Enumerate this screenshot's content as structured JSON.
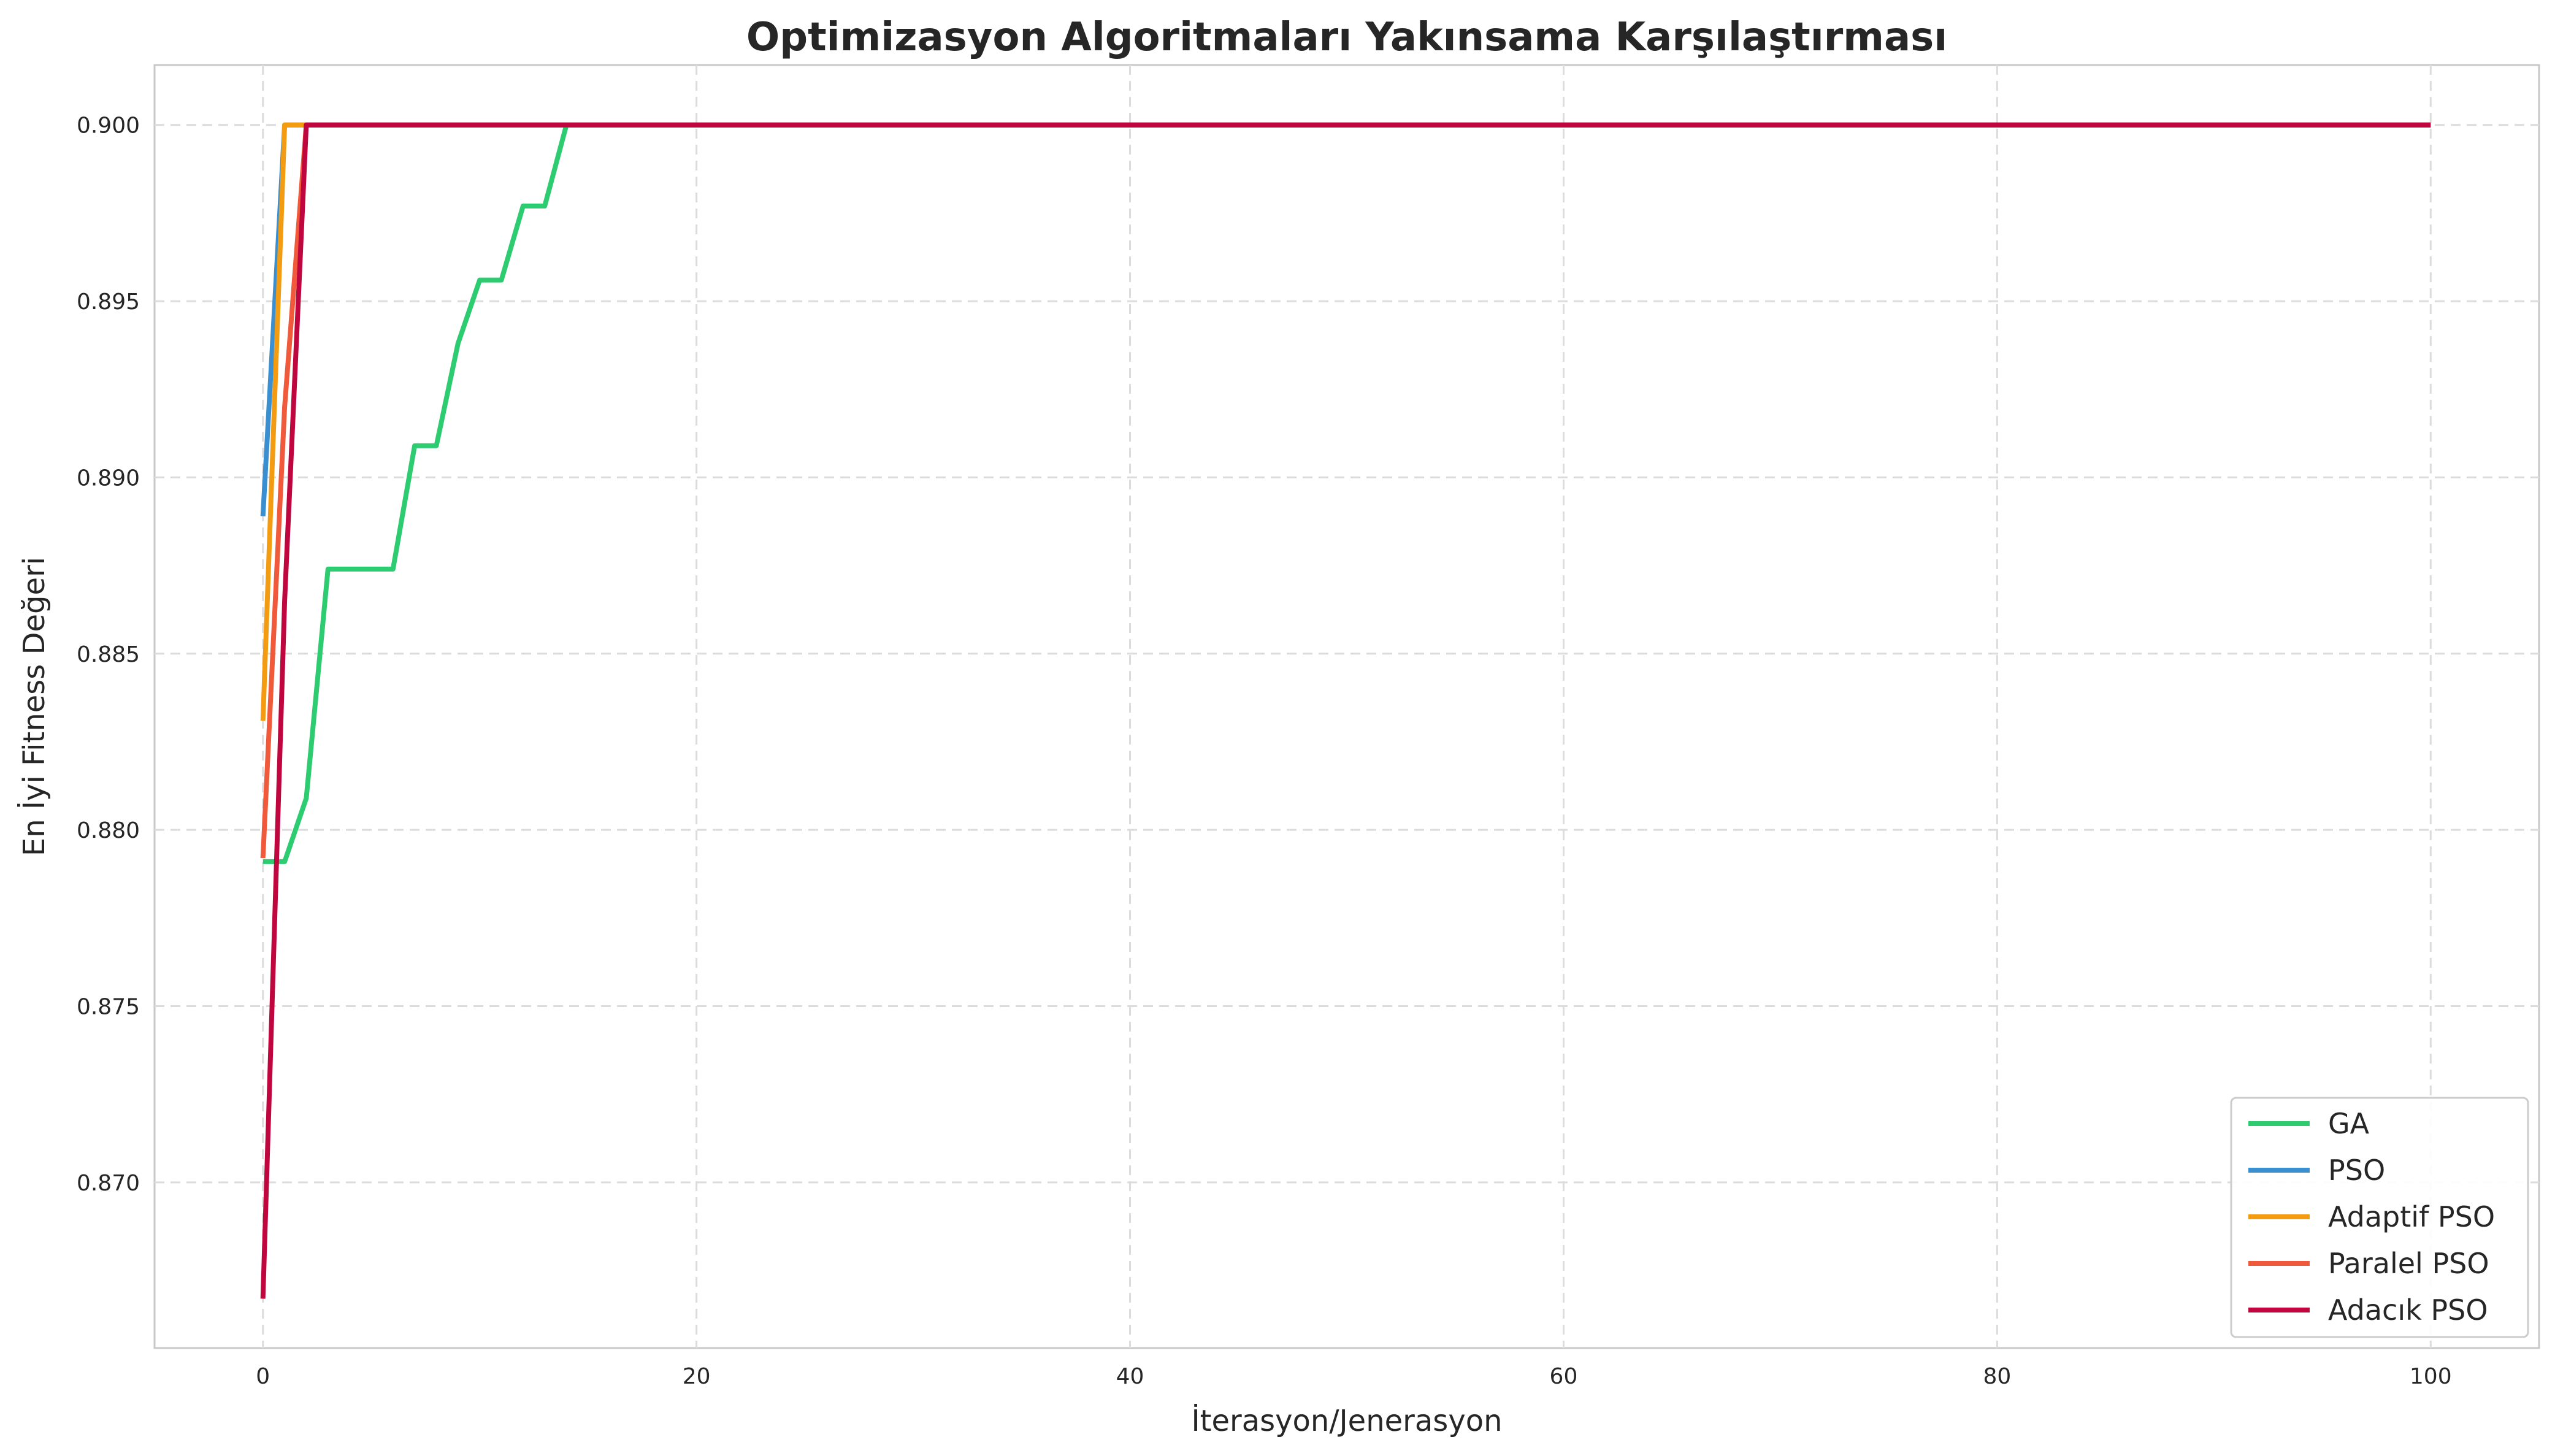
{
  "chart_data": {
    "type": "line",
    "title": "Optimizasyon Algoritmaları Yakınsama Karşılaştırması",
    "xlabel": "İterasyon/Jenerasyon",
    "ylabel": "En İyi Fitness Değeri",
    "xlim": [
      -5,
      105
    ],
    "ylim": [
      0.8653,
      0.9017
    ],
    "xticks": [
      0,
      20,
      40,
      60,
      80,
      100
    ],
    "xtick_labels": [
      "0",
      "20",
      "40",
      "60",
      "80",
      "100"
    ],
    "yticks": [
      0.87,
      0.875,
      0.88,
      0.885,
      0.89,
      0.895,
      0.9
    ],
    "ytick_labels": [
      "0.870",
      "0.875",
      "0.880",
      "0.885",
      "0.890",
      "0.895",
      "0.900"
    ],
    "grid": true,
    "legend_position": "lower-right",
    "series": [
      {
        "name": "GA",
        "color": "#2ecc71",
        "points": [
          [
            0,
            0.8791
          ],
          [
            1,
            0.8791
          ],
          [
            2,
            0.8809
          ],
          [
            3,
            0.8874
          ],
          [
            4,
            0.8874
          ],
          [
            5,
            0.8874
          ],
          [
            6,
            0.8874
          ],
          [
            7,
            0.8909
          ],
          [
            8,
            0.8909
          ],
          [
            9,
            0.8938
          ],
          [
            10,
            0.8956
          ],
          [
            11,
            0.8956
          ],
          [
            12,
            0.8977
          ],
          [
            13,
            0.8977
          ],
          [
            14,
            0.9
          ],
          [
            100,
            0.9
          ]
        ]
      },
      {
        "name": "PSO",
        "color": "#3a8fd0",
        "points": [
          [
            0,
            0.8889
          ],
          [
            1,
            0.9
          ],
          [
            100,
            0.9
          ]
        ]
      },
      {
        "name": "Adaptif PSO",
        "color": "#f39c12",
        "points": [
          [
            0,
            0.8831
          ],
          [
            1,
            0.9
          ],
          [
            100,
            0.9
          ]
        ]
      },
      {
        "name": "Paralel PSO",
        "color": "#f05a3a",
        "points": [
          [
            0,
            0.8792
          ],
          [
            1,
            0.892
          ],
          [
            2,
            0.9
          ],
          [
            100,
            0.9
          ]
        ]
      },
      {
        "name": "Adacık PSO",
        "color": "#c0063e",
        "points": [
          [
            0,
            0.8667
          ],
          [
            1,
            0.8865
          ],
          [
            2,
            0.9
          ],
          [
            100,
            0.9
          ]
        ]
      }
    ]
  }
}
